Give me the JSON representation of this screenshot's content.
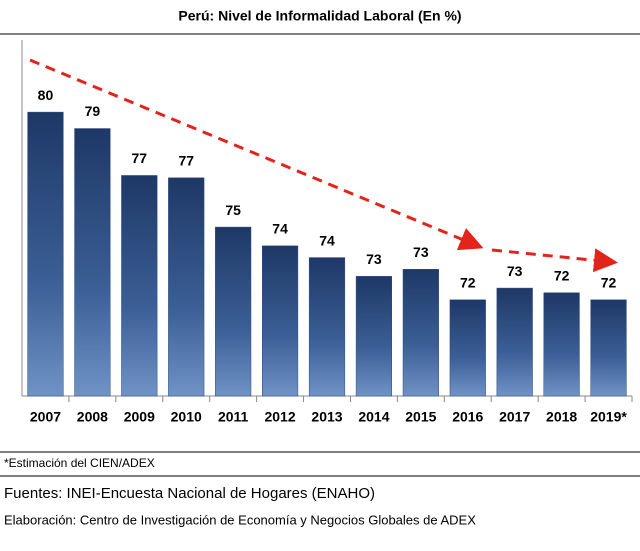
{
  "chart_data": {
    "type": "bar",
    "title": "Perú: Nivel de Informalidad Laboral (En %)",
    "categories": [
      "2007",
      "2008",
      "2009",
      "2010",
      "2011",
      "2012",
      "2013",
      "2014",
      "2015",
      "2016",
      "2017",
      "2018",
      "2019*"
    ],
    "values": [
      80.1,
      79.4,
      77.4,
      77.3,
      75.2,
      74.4,
      73.9,
      73.1,
      73.4,
      72.1,
      72.6,
      72.4,
      72.1
    ],
    "value_labels": [
      "80",
      "79",
      "77",
      "77",
      "75",
      "74",
      "74",
      "73",
      "73",
      "72",
      "73",
      "72",
      "72"
    ],
    "color": "#2b4a80",
    "ylim": [
      68,
      81
    ],
    "note": "*Estimación del CIEN/ADEX",
    "source": "Fuentes: INEI-Encuesta Nacional de Hogares (ENAHO)",
    "credit": "Elaboración: Centro de Investigación de Economía y Negocios Globales de ADEX"
  }
}
